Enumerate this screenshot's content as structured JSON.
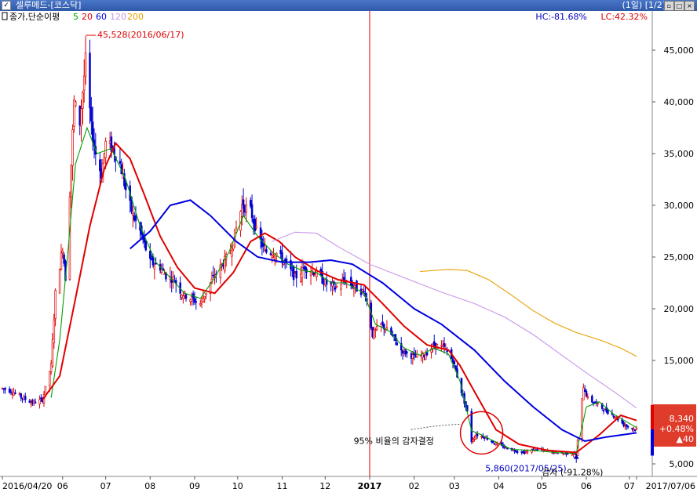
{
  "window": {
    "title": "셀루메드-[코스닥]",
    "page_indicator": "(1일) [1/2]",
    "checkbox_mark": "✓",
    "buttons": [
      "restore",
      "maximize",
      "close"
    ]
  },
  "legend": {
    "prefix": "종가,단순이평",
    "items": [
      {
        "label": "5",
        "color": "#00a000"
      },
      {
        "label": "20",
        "color": "#e00000"
      },
      {
        "label": "60",
        "color": "#0000e0"
      },
      {
        "label": "120",
        "color": "#c896e8"
      },
      {
        "label": "200",
        "color": "#e8a000"
      }
    ]
  },
  "stats": {
    "hc": "HC:-81.68%",
    "lc": "LC:42.32%"
  },
  "chart_data": {
    "type": "candlestick",
    "y_ticks": [
      5000,
      10000,
      15000,
      20000,
      25000,
      30000,
      35000,
      40000,
      45000
    ],
    "y_tick_labels": [
      "5,000",
      "10,000",
      "15,000",
      "20,000",
      "25,000",
      "30,000",
      "35,000",
      "40,000",
      "45,000"
    ],
    "ylim": [
      2500,
      48500
    ],
    "x_ticks": [
      {
        "label": "2016/04/20",
        "date": "2016-04-20"
      },
      {
        "label": "06",
        "date": "2016-06-01"
      },
      {
        "label": "07",
        "date": "2016-07-01"
      },
      {
        "label": "08",
        "date": "2016-08-01"
      },
      {
        "label": "09",
        "date": "2016-09-01"
      },
      {
        "label": "10",
        "date": "2016-10-01"
      },
      {
        "label": "11",
        "date": "2016-11-01"
      },
      {
        "label": "12",
        "date": "2016-12-01"
      },
      {
        "label": "2017",
        "date": "2017-01-01"
      },
      {
        "label": "02",
        "date": "2017-02-01"
      },
      {
        "label": "03",
        "date": "2017-03-01"
      },
      {
        "label": "04",
        "date": "2017-04-01"
      },
      {
        "label": "05",
        "date": "2017-05-01"
      },
      {
        "label": "06",
        "date": "2017-06-01"
      },
      {
        "label": "07",
        "date": "2017-07-01"
      },
      {
        "label": "2017/07/06",
        "date": "2017-07-06"
      }
    ],
    "year_divider": "2017-01-01",
    "price_series": [
      [
        "2016-04-20",
        12300
      ],
      [
        "2016-04-27",
        12000
      ],
      [
        "2016-05-04",
        11400
      ],
      [
        "2016-05-11",
        10900
      ],
      [
        "2016-05-18",
        11200
      ],
      [
        "2016-05-24",
        14500
      ],
      [
        "2016-05-27",
        21500
      ],
      [
        "2016-06-01",
        26000
      ],
      [
        "2016-06-03",
        23000
      ],
      [
        "2016-06-07",
        34000
      ],
      [
        "2016-06-09",
        40000
      ],
      [
        "2016-06-13",
        38000
      ],
      [
        "2016-06-17",
        44000
      ],
      [
        "2016-06-21",
        37500
      ],
      [
        "2016-06-24",
        35000
      ],
      [
        "2016-06-28",
        33000
      ],
      [
        "2016-07-01",
        36000
      ],
      [
        "2016-07-06",
        35500
      ],
      [
        "2016-07-11",
        34000
      ],
      [
        "2016-07-15",
        31500
      ],
      [
        "2016-07-20",
        29000
      ],
      [
        "2016-07-25",
        27500
      ],
      [
        "2016-08-01",
        24500
      ],
      [
        "2016-08-08",
        24000
      ],
      [
        "2016-08-12",
        23200
      ],
      [
        "2016-08-18",
        22800
      ],
      [
        "2016-08-23",
        21500
      ],
      [
        "2016-08-29",
        21000
      ],
      [
        "2016-09-05",
        20500
      ],
      [
        "2016-09-12",
        22500
      ],
      [
        "2016-09-19",
        24000
      ],
      [
        "2016-09-26",
        25500
      ],
      [
        "2016-10-04",
        30000
      ],
      [
        "2016-10-10",
        29500
      ],
      [
        "2016-10-14",
        27500
      ],
      [
        "2016-10-20",
        25500
      ],
      [
        "2016-10-27",
        25500
      ],
      [
        "2016-11-03",
        24500
      ],
      [
        "2016-11-10",
        23000
      ],
      [
        "2016-11-17",
        24000
      ],
      [
        "2016-11-24",
        23500
      ],
      [
        "2016-12-01",
        22500
      ],
      [
        "2016-12-08",
        22000
      ],
      [
        "2016-12-15",
        22800
      ],
      [
        "2016-12-22",
        22000
      ],
      [
        "2016-12-29",
        21500
      ],
      [
        "2017-01-03",
        17500
      ],
      [
        "2017-01-09",
        18500
      ],
      [
        "2017-01-16",
        17500
      ],
      [
        "2017-01-23",
        16000
      ],
      [
        "2017-02-01",
        15300
      ],
      [
        "2017-02-08",
        15500
      ],
      [
        "2017-02-15",
        16500
      ],
      [
        "2017-02-22",
        16200
      ],
      [
        "2017-02-28",
        15000
      ],
      [
        "2017-03-06",
        12000
      ],
      [
        "2017-03-10",
        10000
      ],
      [
        "2017-03-13",
        7200
      ],
      [
        "2017-03-16",
        7800
      ],
      [
        "2017-03-22",
        7600
      ],
      [
        "2017-03-29",
        7000
      ],
      [
        "2017-04-05",
        6600
      ],
      [
        "2017-04-12",
        6300
      ],
      [
        "2017-04-19",
        6100
      ],
      [
        "2017-04-26",
        6400
      ],
      [
        "2017-05-03",
        6300
      ],
      [
        "2017-05-10",
        6100
      ],
      [
        "2017-05-17",
        6000
      ],
      [
        "2017-05-24",
        6000
      ],
      [
        "2017-05-25",
        5900
      ],
      [
        "2017-05-30",
        12500
      ],
      [
        "2017-06-02",
        11300
      ],
      [
        "2017-06-08",
        10800
      ],
      [
        "2017-06-14",
        10200
      ],
      [
        "2017-06-21",
        9600
      ],
      [
        "2017-06-27",
        8800
      ],
      [
        "2017-07-03",
        8400
      ],
      [
        "2017-07-06",
        8340
      ]
    ],
    "series": [
      {
        "name": "5",
        "color": "#00a000",
        "points": [
          [
            "2016-05-24",
            11400
          ],
          [
            "2016-05-30",
            17000
          ],
          [
            "2016-06-05",
            26000
          ],
          [
            "2016-06-10",
            34000
          ],
          [
            "2016-06-18",
            37500
          ],
          [
            "2016-06-25",
            35000
          ],
          [
            "2016-07-05",
            35500
          ],
          [
            "2016-07-15",
            32500
          ],
          [
            "2016-07-25",
            28000
          ],
          [
            "2016-08-05",
            24500
          ],
          [
            "2016-08-15",
            23000
          ],
          [
            "2016-08-25",
            21500
          ],
          [
            "2016-09-05",
            21000
          ],
          [
            "2016-09-15",
            23000
          ],
          [
            "2016-09-25",
            25500
          ],
          [
            "2016-10-05",
            29000
          ],
          [
            "2016-10-15",
            27000
          ],
          [
            "2016-10-25",
            25500
          ],
          [
            "2016-11-05",
            24300
          ],
          [
            "2016-11-15",
            23700
          ],
          [
            "2016-11-25",
            23500
          ],
          [
            "2016-12-05",
            22500
          ],
          [
            "2016-12-15",
            22500
          ],
          [
            "2016-12-28",
            21500
          ],
          [
            "2017-01-05",
            18500
          ],
          [
            "2017-01-15",
            17800
          ],
          [
            "2017-01-25",
            16200
          ],
          [
            "2017-02-05",
            15500
          ],
          [
            "2017-02-15",
            16200
          ],
          [
            "2017-02-25",
            15600
          ],
          [
            "2017-03-05",
            13000
          ],
          [
            "2017-03-13",
            8200
          ],
          [
            "2017-03-20",
            7800
          ],
          [
            "2017-03-30",
            7100
          ],
          [
            "2017-04-10",
            6400
          ],
          [
            "2017-04-25",
            6300
          ],
          [
            "2017-05-10",
            6100
          ],
          [
            "2017-05-25",
            6000
          ],
          [
            "2017-06-01",
            10500
          ],
          [
            "2017-06-10",
            11000
          ],
          [
            "2017-06-20",
            9800
          ],
          [
            "2017-07-06",
            8500
          ]
        ]
      },
      {
        "name": "20",
        "color": "#e00000",
        "points": [
          [
            "2016-05-18",
            11200
          ],
          [
            "2016-05-30",
            13500
          ],
          [
            "2016-06-10",
            21000
          ],
          [
            "2016-06-20",
            28000
          ],
          [
            "2016-06-30",
            33500
          ],
          [
            "2016-07-08",
            36000
          ],
          [
            "2016-07-18",
            34500
          ],
          [
            "2016-07-28",
            31000
          ],
          [
            "2016-08-08",
            27000
          ],
          [
            "2016-08-20",
            24000
          ],
          [
            "2016-09-01",
            22000
          ],
          [
            "2016-09-15",
            21500
          ],
          [
            "2016-09-28",
            23500
          ],
          [
            "2016-10-10",
            26500
          ],
          [
            "2016-10-20",
            27300
          ],
          [
            "2016-10-30",
            26500
          ],
          [
            "2016-11-10",
            25000
          ],
          [
            "2016-11-25",
            23700
          ],
          [
            "2016-12-10",
            22800
          ],
          [
            "2016-12-28",
            22300
          ],
          [
            "2017-01-10",
            20500
          ],
          [
            "2017-01-25",
            18300
          ],
          [
            "2017-02-10",
            16500
          ],
          [
            "2017-02-25",
            16000
          ],
          [
            "2017-03-05",
            14500
          ],
          [
            "2017-03-15",
            12000
          ],
          [
            "2017-03-30",
            8300
          ],
          [
            "2017-04-15",
            6900
          ],
          [
            "2017-05-05",
            6300
          ],
          [
            "2017-05-25",
            6100
          ],
          [
            "2017-06-10",
            7800
          ],
          [
            "2017-06-25",
            9700
          ],
          [
            "2017-07-06",
            9200
          ]
        ]
      },
      {
        "name": "60",
        "color": "#0000e0",
        "points": [
          [
            "2016-07-18",
            25800
          ],
          [
            "2016-08-01",
            27500
          ],
          [
            "2016-08-15",
            30000
          ],
          [
            "2016-08-29",
            30500
          ],
          [
            "2016-09-12",
            29000
          ],
          [
            "2016-09-30",
            26500
          ],
          [
            "2016-10-15",
            25000
          ],
          [
            "2016-11-01",
            24500
          ],
          [
            "2016-11-20",
            24500
          ],
          [
            "2016-12-05",
            24700
          ],
          [
            "2016-12-20",
            24300
          ],
          [
            "2017-01-10",
            22500
          ],
          [
            "2017-02-01",
            20000
          ],
          [
            "2017-02-20",
            18500
          ],
          [
            "2017-03-15",
            16000
          ],
          [
            "2017-04-05",
            13000
          ],
          [
            "2017-04-25",
            10500
          ],
          [
            "2017-05-15",
            8300
          ],
          [
            "2017-05-31",
            7200
          ],
          [
            "2017-06-15",
            7600
          ],
          [
            "2017-07-06",
            8000
          ]
        ]
      },
      {
        "name": "120",
        "color": "#c896e8",
        "points": [
          [
            "2016-10-25",
            26500
          ],
          [
            "2016-11-10",
            27400
          ],
          [
            "2016-11-25",
            27300
          ],
          [
            "2016-12-10",
            26000
          ],
          [
            "2017-01-01",
            24300
          ],
          [
            "2017-01-25",
            23000
          ],
          [
            "2017-02-20",
            21600
          ],
          [
            "2017-03-15",
            20500
          ],
          [
            "2017-04-05",
            19200
          ],
          [
            "2017-04-25",
            17500
          ],
          [
            "2017-05-15",
            15500
          ],
          [
            "2017-06-01",
            13800
          ],
          [
            "2017-06-20",
            12000
          ],
          [
            "2017-07-06",
            10400
          ]
        ]
      },
      {
        "name": "200",
        "color": "#e8a000",
        "points": [
          [
            "2017-02-05",
            23600
          ],
          [
            "2017-02-25",
            23800
          ],
          [
            "2017-03-10",
            23700
          ],
          [
            "2017-03-25",
            22800
          ],
          [
            "2017-04-10",
            21300
          ],
          [
            "2017-04-25",
            19800
          ],
          [
            "2017-05-10",
            18600
          ],
          [
            "2017-05-25",
            17700
          ],
          [
            "2017-06-10",
            17000
          ],
          [
            "2017-06-25",
            16200
          ],
          [
            "2017-07-06",
            15400
          ]
        ]
      }
    ],
    "annotations": {
      "high": {
        "label": "45,528(2016/06/17)",
        "date": "2016-06-17",
        "value": 45528
      },
      "low": {
        "label": "5,860(2017/05/25)",
        "date": "2017-05-25",
        "value": 5860
      },
      "note": "95% 비율의 감자결정",
      "event": "감자 (-91.28%)"
    },
    "current": {
      "price": "8,340",
      "change_pct": "+0.48%",
      "change_abs": "▲40",
      "value": 8340
    }
  }
}
